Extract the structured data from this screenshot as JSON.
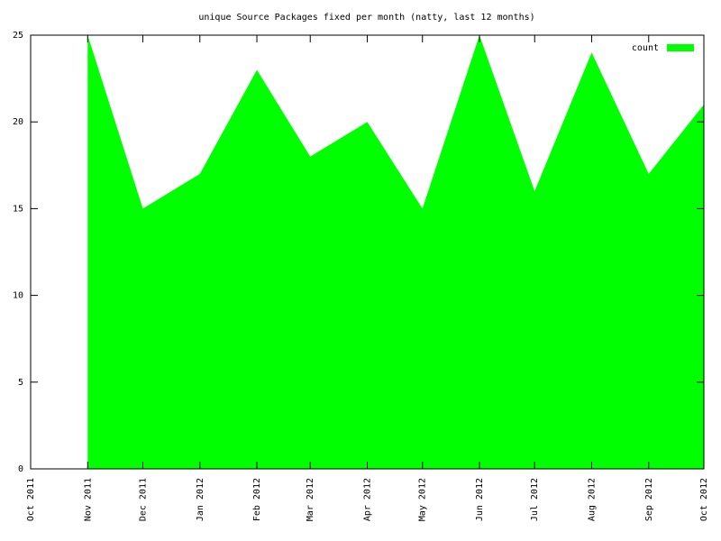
{
  "chart_data": {
    "type": "area",
    "title": "unique Source Packages fixed per month (natty, last 12 months)",
    "x": [
      "Nov 2011",
      "Dec 2011",
      "Jan 2012",
      "Feb 2012",
      "Mar 2012",
      "Apr 2012",
      "May 2012",
      "Jun 2012",
      "Jul 2012",
      "Aug 2012",
      "Sep 2012",
      "Oct 2012"
    ],
    "series": [
      {
        "name": "count",
        "color": "#00ff00",
        "values": [
          25,
          15,
          17,
          23,
          18,
          20,
          15,
          25,
          16,
          24,
          17,
          21
        ]
      }
    ],
    "xlim": [
      "Oct 2011",
      "Oct 2012"
    ],
    "xticks": [
      "Oct 2011",
      "Nov 2011",
      "Dec 2011",
      "Jan 2012",
      "Feb 2012",
      "Mar 2012",
      "Apr 2012",
      "May 2012",
      "Jun 2012",
      "Jul 2012",
      "Aug 2012",
      "Sep 2012",
      "Oct 2012"
    ],
    "ylim": [
      0,
      25
    ],
    "yticks": [
      0,
      5,
      10,
      15,
      20,
      25
    ],
    "legend": "top right"
  }
}
